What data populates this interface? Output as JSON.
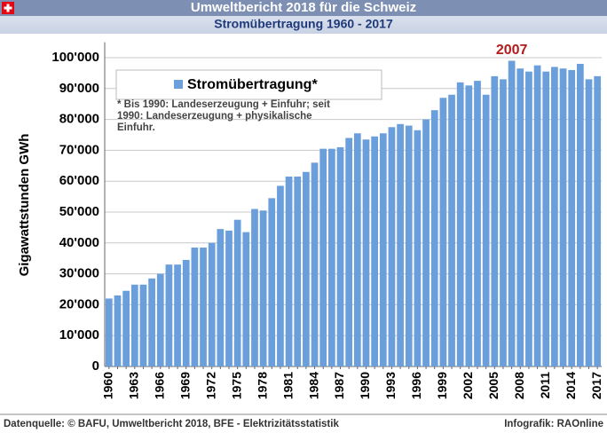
{
  "chart_data": {
    "type": "bar",
    "title": "Umweltbericht 2018 für die Schweiz",
    "subtitle": "Stromübertragung 1960 - 2017",
    "y_label": "Gigawattstunden GWh",
    "categories": [
      "1960",
      null,
      null,
      "1963",
      null,
      null,
      "1966",
      null,
      null,
      "1969",
      null,
      null,
      "1972",
      null,
      null,
      "1975",
      null,
      null,
      "1978",
      null,
      null,
      "1981",
      null,
      null,
      "1984",
      null,
      null,
      "1987",
      null,
      null,
      "1990",
      null,
      null,
      "1993",
      null,
      null,
      "1996",
      null,
      null,
      "1999",
      null,
      null,
      "2002",
      null,
      null,
      "2005",
      null,
      null,
      "2008",
      null,
      null,
      "2011",
      null,
      null,
      "2014",
      null,
      null,
      "2017"
    ],
    "series": [
      {
        "name": "Stromübertragung*",
        "color": "#6a9fdb",
        "values": [
          22000,
          23000,
          24500,
          26500,
          26500,
          28500,
          30000,
          33000,
          33000,
          34500,
          38500,
          38500,
          40000,
          44500,
          44000,
          47500,
          43500,
          51000,
          50500,
          54500,
          58500,
          61500,
          61500,
          63000,
          66000,
          70500,
          70500,
          71000,
          74000,
          75500,
          73500,
          74500,
          75500,
          77500,
          78500,
          78000,
          76500,
          80000,
          83000,
          87000,
          88000,
          92000,
          91000,
          92500,
          88000,
          94000,
          93000,
          99000,
          96500,
          95500,
          97500,
          95500,
          97000,
          96500,
          96000,
          98000,
          93000,
          94000
        ]
      }
    ],
    "ylim": [
      0,
      105000
    ],
    "yticks": [
      0,
      {
        "value": 10000,
        "label": "10'000"
      },
      {
        "value": 20000,
        "label": "20'000"
      },
      {
        "value": 30000,
        "label": "30'000"
      },
      {
        "value": 40000,
        "label": "40'000"
      },
      {
        "value": 50000,
        "label": "50'000"
      },
      {
        "value": 60000,
        "label": "60'000"
      },
      {
        "value": 70000,
        "label": "70'000"
      },
      {
        "value": 80000,
        "label": "80'000"
      },
      {
        "value": 90000,
        "label": "90'000"
      },
      {
        "value": 100000,
        "label": "100'000"
      }
    ],
    "grid": true,
    "annotation": "2007",
    "footnote": [
      "* Bis 1990: Landeserzeugung + Einfuhr; seit",
      "1990: Landeserzeugung + physikalische",
      "Einfuhr."
    ],
    "source": "Datenquelle: © BAFU, Umweltbericht 2018, BFE - Elektrizitätsstatistik",
    "credit": "Infografik: RAOnline"
  }
}
